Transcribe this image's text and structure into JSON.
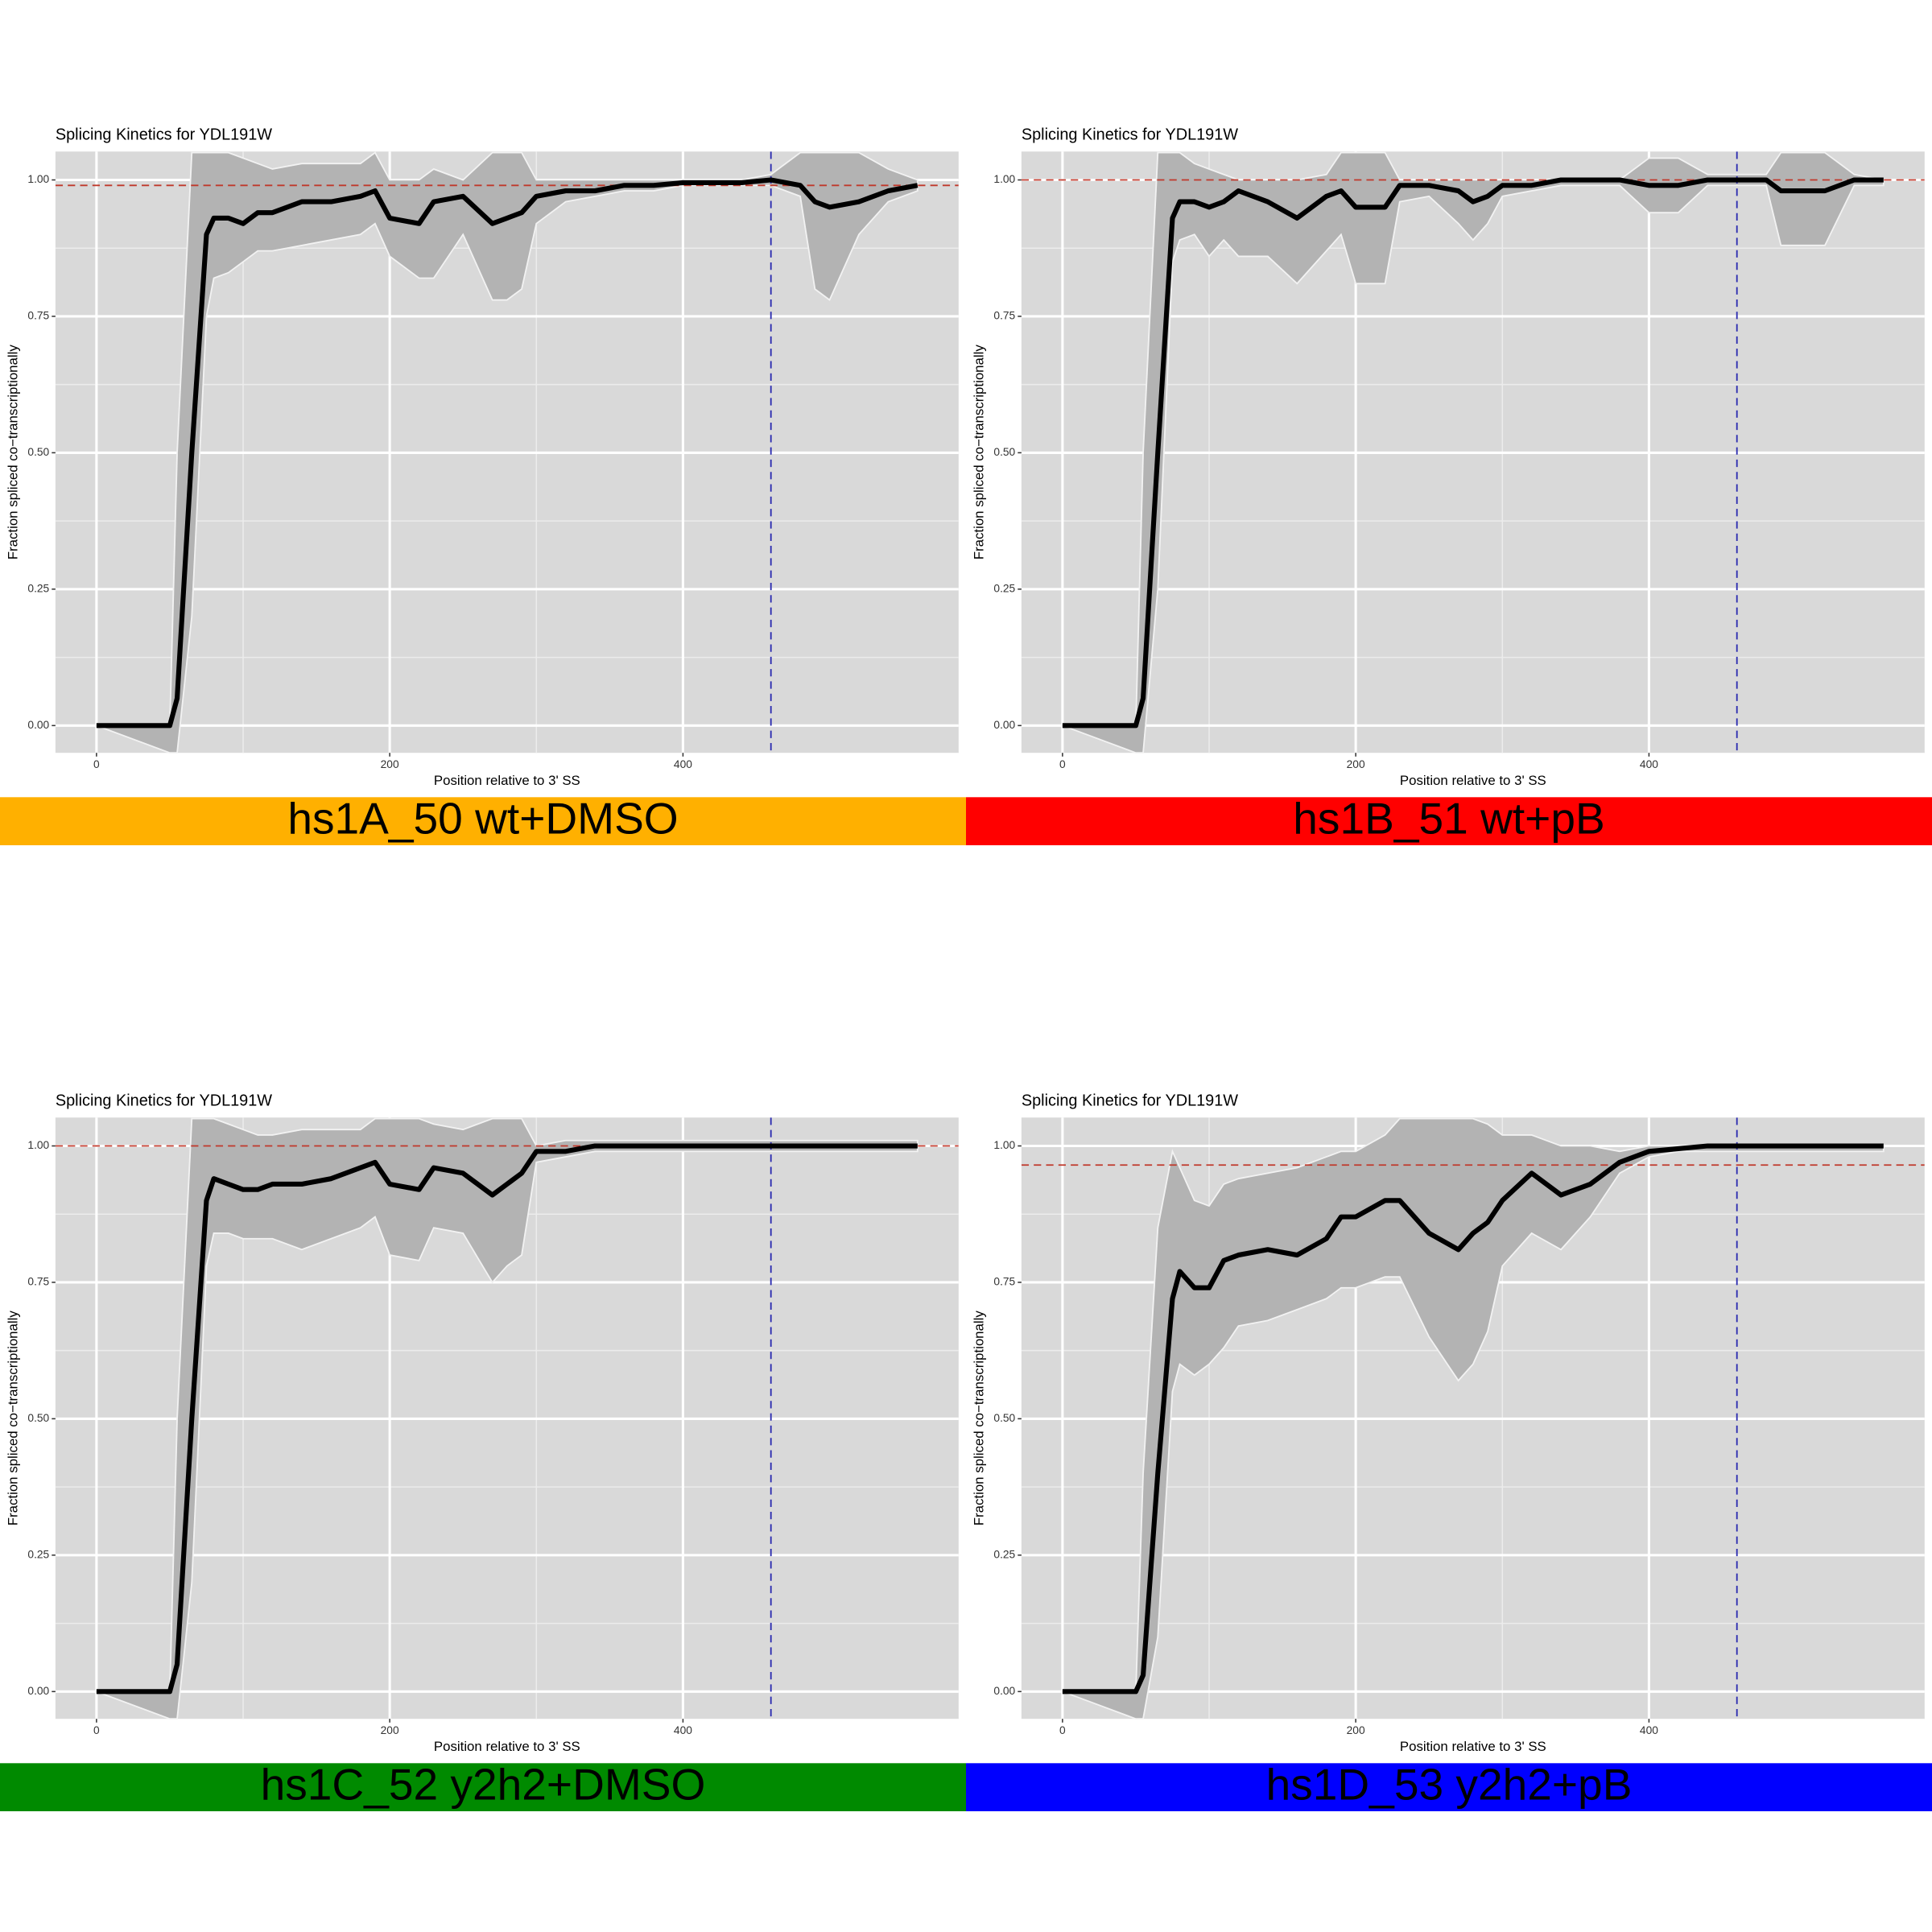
{
  "chart_data": [
    {
      "type": "line",
      "title": "Splicing Kinetics for YDL191W",
      "x_label": "Position relative to 3' SS",
      "y_label": "Fraction spliced co−transcriptionally",
      "label": "hs1A_50 wt+DMSO",
      "label_color": "#ffb000",
      "line_color": "#000000",
      "band_color": "#b3b3b3",
      "hline": 0.99,
      "hline_color": "#c0392b",
      "vline": 460,
      "vline_color": "#2b2bb0",
      "xlim": [
        -28,
        588
      ],
      "ylim": [
        -0.05,
        1.052
      ],
      "xticks": [
        0,
        200,
        400
      ],
      "yticks": [
        {
          "value": 0,
          "label": "0.00"
        },
        {
          "value": 0.25,
          "label": "0.25"
        },
        {
          "value": 0.5,
          "label": "0.50"
        },
        {
          "value": 0.75,
          "label": "0.75"
        },
        {
          "value": 1,
          "label": "1.00"
        }
      ],
      "x": [
        0,
        50,
        55,
        65,
        75,
        80,
        90,
        100,
        110,
        120,
        140,
        160,
        180,
        190,
        200,
        220,
        230,
        250,
        270,
        280,
        290,
        300,
        320,
        340,
        360,
        380,
        400,
        420,
        440,
        460,
        480,
        490,
        500,
        520,
        540,
        560
      ],
      "values": [
        0,
        0,
        0.05,
        0.5,
        0.9,
        0.93,
        0.93,
        0.92,
        0.94,
        0.94,
        0.96,
        0.96,
        0.97,
        0.98,
        0.93,
        0.92,
        0.96,
        0.97,
        0.92,
        0.93,
        0.94,
        0.97,
        0.98,
        0.98,
        0.99,
        0.99,
        0.995,
        0.995,
        0.995,
        1,
        0.99,
        0.96,
        0.95,
        0.96,
        0.98,
        0.99
      ],
      "lower": [
        0,
        -0.05,
        -0.05,
        0.2,
        0.75,
        0.82,
        0.83,
        0.85,
        0.87,
        0.87,
        0.88,
        0.89,
        0.9,
        0.92,
        0.86,
        0.82,
        0.82,
        0.9,
        0.78,
        0.78,
        0.8,
        0.92,
        0.96,
        0.97,
        0.98,
        0.98,
        0.99,
        0.99,
        0.99,
        0.99,
        0.97,
        0.8,
        0.78,
        0.9,
        0.96,
        0.98
      ],
      "upper": [
        0,
        0,
        0.5,
        1.05,
        1.05,
        1.05,
        1.05,
        1.04,
        1.03,
        1.02,
        1.03,
        1.03,
        1.03,
        1.05,
        1,
        1,
        1.02,
        1,
        1.05,
        1.05,
        1.05,
        1,
        1,
        1,
        1,
        1,
        1,
        1,
        1,
        1.01,
        1.05,
        1.05,
        1.05,
        1.05,
        1.02,
        1
      ]
    },
    {
      "type": "line",
      "title": "Splicing Kinetics for YDL191W",
      "x_label": "Position relative to 3' SS",
      "y_label": "Fraction spliced co−transcriptionally",
      "label": "hs1B_51 wt+pB",
      "label_color": "#ff0000",
      "line_color": "#000000",
      "band_color": "#b3b3b3",
      "hline": 1,
      "hline_color": "#c0392b",
      "vline": 460,
      "vline_color": "#2b2bb0",
      "xlim": [
        -28,
        588
      ],
      "ylim": [
        -0.05,
        1.052
      ],
      "xticks": [
        0,
        200,
        400
      ],
      "yticks": [
        {
          "value": 0,
          "label": "0.00"
        },
        {
          "value": 0.25,
          "label": "0.25"
        },
        {
          "value": 0.5,
          "label": "0.50"
        },
        {
          "value": 0.75,
          "label": "0.75"
        },
        {
          "value": 1,
          "label": "1.00"
        }
      ],
      "x": [
        0,
        50,
        55,
        65,
        75,
        80,
        90,
        100,
        110,
        120,
        140,
        160,
        180,
        190,
        200,
        220,
        230,
        250,
        270,
        280,
        290,
        300,
        320,
        340,
        360,
        380,
        400,
        420,
        440,
        460,
        480,
        490,
        500,
        520,
        540,
        560
      ],
      "values": [
        0,
        0,
        0.05,
        0.5,
        0.93,
        0.96,
        0.96,
        0.95,
        0.96,
        0.98,
        0.96,
        0.93,
        0.97,
        0.98,
        0.95,
        0.95,
        0.99,
        0.99,
        0.98,
        0.96,
        0.97,
        0.99,
        0.99,
        1,
        1,
        1,
        0.99,
        0.99,
        1,
        1,
        1,
        0.98,
        0.98,
        0.98,
        1,
        1
      ],
      "lower": [
        0,
        -0.05,
        -0.05,
        0.25,
        0.85,
        0.89,
        0.9,
        0.86,
        0.89,
        0.86,
        0.86,
        0.81,
        0.87,
        0.9,
        0.81,
        0.81,
        0.96,
        0.97,
        0.92,
        0.89,
        0.92,
        0.97,
        0.98,
        0.99,
        0.99,
        0.99,
        0.94,
        0.94,
        0.99,
        0.99,
        0.99,
        0.88,
        0.88,
        0.88,
        0.99,
        0.99
      ],
      "upper": [
        0,
        0,
        0.5,
        1.05,
        1.05,
        1.05,
        1.03,
        1.02,
        1.01,
        1,
        1,
        1,
        1.01,
        1.05,
        1.05,
        1.05,
        1,
        1,
        1,
        1,
        1,
        1,
        1,
        1,
        1,
        1,
        1.04,
        1.04,
        1.01,
        1.01,
        1.01,
        1.05,
        1.05,
        1.05,
        1.01,
        1
      ]
    },
    {
      "type": "line",
      "title": "Splicing Kinetics for YDL191W",
      "x_label": "Position relative to 3' SS",
      "y_label": "Fraction spliced co−transcriptionally",
      "label": "hs1C_52 y2h2+DMSO",
      "label_color": "#008a00",
      "line_color": "#000000",
      "band_color": "#b3b3b3",
      "hline": 1,
      "hline_color": "#c0392b",
      "vline": 460,
      "vline_color": "#2b2bb0",
      "xlim": [
        -28,
        588
      ],
      "ylim": [
        -0.05,
        1.052
      ],
      "xticks": [
        0,
        200,
        400
      ],
      "yticks": [
        {
          "value": 0,
          "label": "0.00"
        },
        {
          "value": 0.25,
          "label": "0.25"
        },
        {
          "value": 0.5,
          "label": "0.50"
        },
        {
          "value": 0.75,
          "label": "0.75"
        },
        {
          "value": 1,
          "label": "1.00"
        }
      ],
      "x": [
        0,
        50,
        55,
        65,
        75,
        80,
        90,
        100,
        110,
        120,
        140,
        160,
        180,
        190,
        200,
        220,
        230,
        250,
        270,
        280,
        290,
        300,
        320,
        340,
        360,
        380,
        400,
        420,
        440,
        460,
        480,
        490,
        500,
        520,
        540,
        560
      ],
      "values": [
        0,
        0,
        0.05,
        0.5,
        0.9,
        0.94,
        0.93,
        0.92,
        0.92,
        0.93,
        0.93,
        0.94,
        0.96,
        0.97,
        0.93,
        0.92,
        0.96,
        0.95,
        0.91,
        0.93,
        0.95,
        0.99,
        0.99,
        1,
        1,
        1,
        1,
        1,
        1,
        1,
        1,
        1,
        1,
        1,
        1,
        1
      ],
      "lower": [
        0,
        -0.05,
        -0.05,
        0.2,
        0.78,
        0.84,
        0.84,
        0.83,
        0.83,
        0.83,
        0.81,
        0.83,
        0.85,
        0.87,
        0.8,
        0.79,
        0.85,
        0.84,
        0.75,
        0.78,
        0.8,
        0.97,
        0.98,
        0.99,
        0.99,
        0.99,
        0.99,
        0.99,
        0.99,
        0.99,
        0.99,
        0.99,
        0.99,
        0.99,
        0.99,
        0.99
      ],
      "upper": [
        0,
        0,
        0.5,
        1.05,
        1.05,
        1.05,
        1.04,
        1.03,
        1.02,
        1.02,
        1.03,
        1.03,
        1.03,
        1.05,
        1.05,
        1.05,
        1.04,
        1.03,
        1.05,
        1.05,
        1.05,
        1,
        1.01,
        1.01,
        1.01,
        1.01,
        1.01,
        1.01,
        1.01,
        1.01,
        1.01,
        1.01,
        1.01,
        1.01,
        1.01,
        1.01
      ]
    },
    {
      "type": "line",
      "title": "Splicing Kinetics for YDL191W",
      "x_label": "Position relative to 3' SS",
      "y_label": "Fraction spliced co−transcriptionally",
      "label": "hs1D_53 y2h2+pB",
      "label_color": "#0000ff",
      "line_color": "#000000",
      "band_color": "#b3b3b3",
      "hline": 0.965,
      "hline_color": "#c0392b",
      "vline": 460,
      "vline_color": "#2b2bb0",
      "xlim": [
        -28,
        588
      ],
      "ylim": [
        -0.05,
        1.052
      ],
      "xticks": [
        0,
        200,
        400
      ],
      "yticks": [
        {
          "value": 0,
          "label": "0.00"
        },
        {
          "value": 0.25,
          "label": "0.25"
        },
        {
          "value": 0.5,
          "label": "0.50"
        },
        {
          "value": 0.75,
          "label": "0.75"
        },
        {
          "value": 1,
          "label": "1.00"
        }
      ],
      "x": [
        0,
        50,
        55,
        65,
        75,
        80,
        90,
        100,
        110,
        120,
        140,
        160,
        180,
        190,
        200,
        220,
        230,
        250,
        270,
        280,
        290,
        300,
        320,
        340,
        360,
        380,
        400,
        420,
        440,
        460,
        480,
        490,
        500,
        520,
        540,
        560
      ],
      "values": [
        0,
        0,
        0.03,
        0.4,
        0.72,
        0.77,
        0.74,
        0.74,
        0.79,
        0.8,
        0.81,
        0.8,
        0.83,
        0.87,
        0.87,
        0.9,
        0.9,
        0.84,
        0.81,
        0.84,
        0.86,
        0.9,
        0.95,
        0.91,
        0.93,
        0.97,
        0.99,
        0.995,
        1,
        1,
        1,
        1,
        1,
        1,
        1,
        1
      ],
      "lower": [
        0,
        -0.05,
        -0.05,
        0.1,
        0.55,
        0.6,
        0.58,
        0.6,
        0.63,
        0.67,
        0.68,
        0.7,
        0.72,
        0.74,
        0.74,
        0.76,
        0.76,
        0.65,
        0.57,
        0.6,
        0.66,
        0.78,
        0.84,
        0.81,
        0.87,
        0.95,
        0.98,
        0.99,
        0.99,
        0.99,
        0.99,
        0.99,
        0.99,
        0.99,
        0.99,
        0.99
      ],
      "upper": [
        0,
        0,
        0.4,
        0.85,
        0.99,
        0.96,
        0.9,
        0.89,
        0.93,
        0.94,
        0.95,
        0.96,
        0.98,
        0.99,
        0.99,
        1.02,
        1.05,
        1.05,
        1.05,
        1.05,
        1.04,
        1.02,
        1.02,
        1,
        1,
        0.99,
        1,
        1,
        1,
        1,
        1,
        1,
        1,
        1,
        1,
        1
      ]
    }
  ]
}
